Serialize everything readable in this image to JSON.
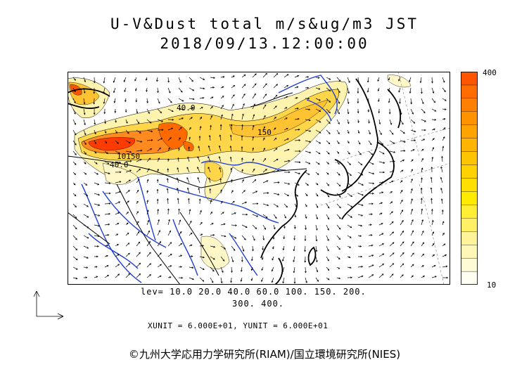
{
  "header": {
    "title_line1": "U-V&Dust total m/s&ug/m3 JST",
    "title_line2": "2018/09/13.12:00:00"
  },
  "colorbar": {
    "max_label": "400",
    "min_label": "10",
    "colors_bottom_to_top": [
      "#fffff2",
      "#fffbd6",
      "#fff7b8",
      "#fff399",
      "#fff066",
      "#ffee33",
      "#ffeb00",
      "#ffdf00",
      "#ffd200",
      "#ffc400",
      "#ffb400",
      "#ffa300",
      "#ff9200",
      "#ff7f00",
      "#ff6c00",
      "#ff5500"
    ]
  },
  "legend": {
    "levels_line1": "lev= 10.0 20.0 40.0 60.0 100. 150. 200.",
    "levels_line2": "300. 400.",
    "units_line": "XUNIT = 6.000E+01, YUNIT = 6.000E+01"
  },
  "map": {
    "contour_labels": [
      "40.0",
      "150",
      "10150",
      "40.0"
    ]
  },
  "footer": {
    "copyright": "©九州大学応用力学研究所(RIAM)/国立環境研究所(NIES)"
  },
  "colors": {
    "water": "#1f3fd6",
    "coast": "#000000",
    "low_dust": "#fff3b0",
    "mid_dust": "#ffd54a",
    "high_dust": "#ff7a1a",
    "peak_dust": "#ff3b00"
  }
}
